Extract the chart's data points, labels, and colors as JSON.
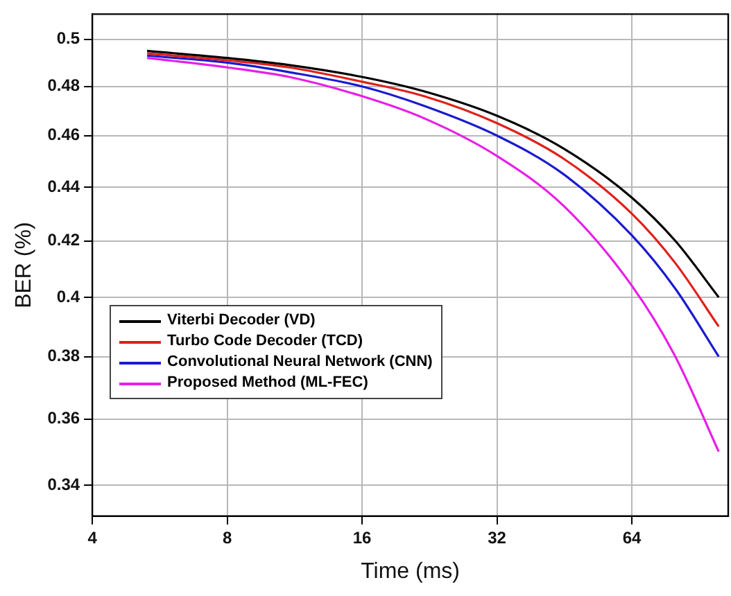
{
  "chart_data": {
    "type": "line",
    "xlabel": "Time (ms)",
    "ylabel": "BER (%)",
    "x": [
      5.3,
      8,
      11,
      16,
      22,
      32,
      45,
      64,
      80,
      100
    ],
    "series": [
      {
        "name": "Viterbi Decoder (VD)",
        "color": "#000000",
        "values": [
          0.495,
          0.492,
          0.489,
          0.484,
          0.478,
          0.468,
          0.455,
          0.436,
          0.42,
          0.4
        ]
      },
      {
        "name": "Turbo Code Decoder (TCD)",
        "color": "#e0201a",
        "values": [
          0.494,
          0.491,
          0.488,
          0.482,
          0.476,
          0.465,
          0.451,
          0.43,
          0.412,
          0.39
        ]
      },
      {
        "name": "Convolutional Neural Network (CNN)",
        "color": "#1a1ad0",
        "values": [
          0.493,
          0.49,
          0.486,
          0.48,
          0.472,
          0.46,
          0.445,
          0.422,
          0.403,
          0.38
        ]
      },
      {
        "name": "Proposed Method (ML-FEC)",
        "color": "#e81ee8",
        "values": [
          0.492,
          0.488,
          0.484,
          0.476,
          0.467,
          0.452,
          0.433,
          0.404,
          0.38,
          0.35
        ]
      }
    ],
    "xlim": [
      4,
      105
    ],
    "xticks": [
      4,
      8,
      16,
      32,
      64
    ],
    "ylim": [
      0.331,
      0.511
    ],
    "yticks": [
      0.34,
      0.36,
      0.38,
      0.4,
      0.42,
      0.44,
      0.46,
      0.48,
      0.5
    ],
    "log": "xy",
    "grid": true,
    "legend": "bottom left",
    "marker": "none",
    "line_style": "solid"
  }
}
